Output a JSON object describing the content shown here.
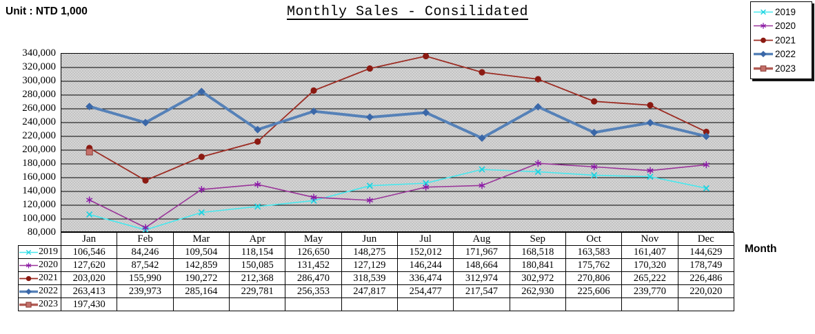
{
  "header": {
    "unit_label": "Unit : NTD 1,000",
    "title": "Monthly Sales - Consilidated",
    "month_label": "Month"
  },
  "chart_data": {
    "type": "line",
    "title": "Monthly Sales - Consilidated",
    "unit": "NTD 1,000",
    "xlabel": "Month",
    "ylabel": "",
    "ylim": [
      80000,
      340000
    ],
    "ytick_step": 20000,
    "grid": true,
    "legend_position": "top-right",
    "plot_background": "#cccccc",
    "gridline_color": "#000000",
    "categories": [
      "Jan",
      "Feb",
      "Mar",
      "Apr",
      "May",
      "Jun",
      "Jul",
      "Aug",
      "Sep",
      "Oct",
      "Nov",
      "Dec"
    ],
    "series": [
      {
        "name": "2019",
        "color": "#45e8ee",
        "marker": "x",
        "marker_color": "#1bd2e0",
        "stroke_width": 1.6,
        "values": [
          106546,
          84246,
          109504,
          118154,
          126650,
          148275,
          152012,
          171967,
          168518,
          163583,
          161407,
          144629
        ]
      },
      {
        "name": "2020",
        "color": "#993399",
        "marker": "asterisk",
        "marker_color": "#8a18a8",
        "stroke_width": 1.6,
        "values": [
          127620,
          87542,
          142859,
          150085,
          131452,
          127129,
          146244,
          148664,
          180841,
          175762,
          170320,
          178749
        ]
      },
      {
        "name": "2021",
        "color": "#9c2b22",
        "marker": "circle",
        "marker_color": "#8b1a12",
        "stroke_width": 1.8,
        "values": [
          203020,
          155990,
          190272,
          212368,
          286470,
          318539,
          336474,
          312974,
          302972,
          270806,
          265222,
          226486
        ]
      },
      {
        "name": "2022",
        "color": "#5581b8",
        "marker": "diamond",
        "marker_color": "#3a67a8",
        "stroke_width": 4,
        "values": [
          263413,
          239973,
          285164,
          229781,
          256353,
          247817,
          254477,
          217547,
          262930,
          225606,
          239770,
          220020
        ]
      },
      {
        "name": "2023",
        "color": "#b25c55",
        "marker": "square",
        "marker_color": "#c4706a",
        "marker_stroke": "#8b3a34",
        "stroke_width": 3.5,
        "values": [
          197430
        ]
      }
    ]
  }
}
